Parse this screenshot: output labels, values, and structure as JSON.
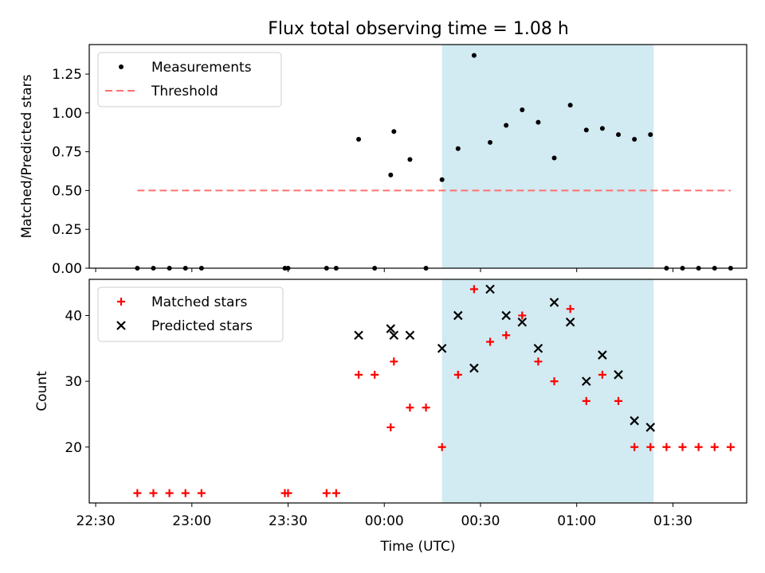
{
  "figure": {
    "title": "Flux total observing time = 1.08 h",
    "shade_color": "#add8e6"
  },
  "chart_data": [
    {
      "type": "scatter",
      "title": "Flux total observing time = 1.08 h",
      "xlabel": "",
      "ylabel": "Matched/Predicted stars",
      "xlim": [
        "22:28",
        "01:53"
      ],
      "ylim": [
        0,
        1.44
      ],
      "yticks": [
        "0.00",
        "0.25",
        "0.50",
        "0.75",
        "1.00",
        "1.25"
      ],
      "shaded_interval": [
        "00:18",
        "01:24"
      ],
      "legend": {
        "position": "upper left",
        "entries": [
          "Measurements",
          "Threshold"
        ]
      },
      "series": [
        {
          "name": "Measurements",
          "marker": "dot",
          "color": "#000000",
          "points": [
            [
              "22:43",
              0
            ],
            [
              "22:48",
              0
            ],
            [
              "22:53",
              0
            ],
            [
              "22:58",
              0
            ],
            [
              "23:03",
              0
            ],
            [
              "23:29",
              0
            ],
            [
              "23:30",
              0
            ],
            [
              "23:42",
              0
            ],
            [
              "23:45",
              0
            ],
            [
              "23:52",
              0.83
            ],
            [
              "23:57",
              0
            ],
            [
              "00:02",
              0.6
            ],
            [
              "00:03",
              0.88
            ],
            [
              "00:08",
              0.7
            ],
            [
              "00:13",
              0
            ],
            [
              "00:18",
              0.57
            ],
            [
              "00:23",
              0.77
            ],
            [
              "00:28",
              1.37
            ],
            [
              "00:33",
              0.81
            ],
            [
              "00:38",
              0.92
            ],
            [
              "00:43",
              1.02
            ],
            [
              "00:48",
              0.94
            ],
            [
              "00:53",
              0.71
            ],
            [
              "00:58",
              1.05
            ],
            [
              "01:03",
              0.89
            ],
            [
              "01:08",
              0.9
            ],
            [
              "01:13",
              0.86
            ],
            [
              "01:18",
              0.83
            ],
            [
              "01:23",
              0.86
            ],
            [
              "01:28",
              0
            ],
            [
              "01:33",
              0
            ],
            [
              "01:38",
              0
            ],
            [
              "01:43",
              0
            ],
            [
              "01:48",
              0
            ]
          ]
        },
        {
          "name": "Threshold",
          "marker": "dashed-line",
          "color": "#ff7070",
          "x_range": [
            "22:43",
            "01:48"
          ],
          "value": 0.5
        }
      ]
    },
    {
      "type": "scatter",
      "xlabel": "Time (UTC)",
      "ylabel": "Count",
      "xlim": [
        "22:28",
        "01:53"
      ],
      "ylim": [
        11.5,
        45.5
      ],
      "yticks": [
        "20",
        "30",
        "40"
      ],
      "xticks": [
        "22:30",
        "23:00",
        "23:30",
        "00:00",
        "00:30",
        "01:00",
        "01:30"
      ],
      "shaded_interval": [
        "00:18",
        "01:24"
      ],
      "legend": {
        "position": "upper left",
        "entries": [
          "Matched stars",
          "Predicted stars"
        ]
      },
      "series": [
        {
          "name": "Matched stars",
          "marker": "plus",
          "color": "#ff0000",
          "points": [
            [
              "22:43",
              13
            ],
            [
              "22:48",
              13
            ],
            [
              "22:53",
              13
            ],
            [
              "22:58",
              13
            ],
            [
              "23:03",
              13
            ],
            [
              "23:29",
              13
            ],
            [
              "23:30",
              13
            ],
            [
              "23:42",
              13
            ],
            [
              "23:45",
              13
            ],
            [
              "23:52",
              31
            ],
            [
              "23:57",
              31
            ],
            [
              "00:02",
              23
            ],
            [
              "00:03",
              33
            ],
            [
              "00:08",
              26
            ],
            [
              "00:13",
              26
            ],
            [
              "00:18",
              20
            ],
            [
              "00:23",
              31
            ],
            [
              "00:28",
              44
            ],
            [
              "00:33",
              36
            ],
            [
              "00:38",
              37
            ],
            [
              "00:43",
              40
            ],
            [
              "00:48",
              33
            ],
            [
              "00:53",
              30
            ],
            [
              "00:58",
              41
            ],
            [
              "01:03",
              27
            ],
            [
              "01:08",
              31
            ],
            [
              "01:13",
              27
            ],
            [
              "01:18",
              20
            ],
            [
              "01:23",
              20
            ],
            [
              "01:28",
              20
            ],
            [
              "01:33",
              20
            ],
            [
              "01:38",
              20
            ],
            [
              "01:43",
              20
            ],
            [
              "01:48",
              20
            ]
          ]
        },
        {
          "name": "Predicted stars",
          "marker": "x",
          "color": "#000000",
          "points": [
            [
              "23:52",
              37
            ],
            [
              "00:02",
              38
            ],
            [
              "00:03",
              37
            ],
            [
              "00:08",
              37
            ],
            [
              "00:18",
              35
            ],
            [
              "00:23",
              40
            ],
            [
              "00:28",
              32
            ],
            [
              "00:33",
              44
            ],
            [
              "00:38",
              40
            ],
            [
              "00:43",
              39
            ],
            [
              "00:48",
              35
            ],
            [
              "00:53",
              42
            ],
            [
              "00:58",
              39
            ],
            [
              "01:03",
              30
            ],
            [
              "01:08",
              34
            ],
            [
              "01:13",
              31
            ],
            [
              "01:18",
              24
            ],
            [
              "01:23",
              23
            ]
          ]
        }
      ]
    }
  ]
}
